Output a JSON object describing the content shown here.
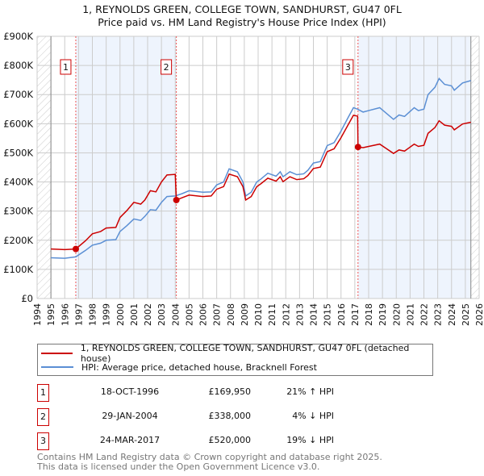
{
  "chart_data": {
    "type": "line",
    "title": "1, REYNOLDS GREEN, COLLEGE TOWN, SANDHURST, GU47 0FL",
    "subtitle": "Price paid vs. HM Land Registry's House Price Index (HPI)",
    "xlim": [
      1994,
      2026
    ],
    "ylim": [
      0,
      900000
    ],
    "x_ticks": [
      "1994",
      "1995",
      "1996",
      "1997",
      "1998",
      "1999",
      "2000",
      "2001",
      "2002",
      "2003",
      "2004",
      "2005",
      "2006",
      "2007",
      "2008",
      "2009",
      "2010",
      "2011",
      "2012",
      "2013",
      "2014",
      "2015",
      "2016",
      "2017",
      "2018",
      "2019",
      "2020",
      "2021",
      "2022",
      "2023",
      "2024",
      "2025",
      "2026"
    ],
    "y_ticks": [
      {
        "v": 0,
        "label": "£0"
      },
      {
        "v": 100000,
        "label": "£100K"
      },
      {
        "v": 200000,
        "label": "£200K"
      },
      {
        "v": 300000,
        "label": "£300K"
      },
      {
        "v": 400000,
        "label": "£400K"
      },
      {
        "v": 500000,
        "label": "£500K"
      },
      {
        "v": 600000,
        "label": "£600K"
      },
      {
        "v": 700000,
        "label": "£700K"
      },
      {
        "v": 800000,
        "label": "£800K"
      },
      {
        "v": 900000,
        "label": "£900K"
      }
    ],
    "grid": true,
    "series": [
      {
        "name": "1, REYNOLDS GREEN, COLLEGE TOWN, SANDHURST, GU47 0FL (detached house)",
        "color": "#cc0000",
        "x": [
          1995,
          1996,
          1996.8,
          1997.5,
          1998,
          1998.6,
          1999,
          1999.7,
          2000,
          2000.5,
          2001,
          2001.5,
          2001.8,
          2002.2,
          2002.6,
          2003,
          2003.4,
          2004.0,
          2004.08,
          2004.5,
          2005,
          2006,
          2006.6,
          2007,
          2007.5,
          2007.9,
          2008.5,
          2008.9,
          2009.1,
          2009.5,
          2009.9,
          2010.2,
          2010.7,
          2011.3,
          2011.6,
          2011.8,
          2012.3,
          2012.8,
          2013.3,
          2013.6,
          2014,
          2014.5,
          2015,
          2015.5,
          2016,
          2016.5,
          2016.9,
          2017.2,
          2017.23,
          2017.6,
          2018,
          2018.8,
          2019.3,
          2019.8,
          2020.2,
          2020.6,
          2021.3,
          2021.6,
          2022,
          2022.3,
          2022.8,
          2023.1,
          2023.5,
          2024,
          2024.2,
          2024.8,
          2025.4
        ],
        "y": [
          170,
          168,
          170,
          198,
          222,
          230,
          242,
          244,
          278,
          302,
          330,
          324,
          338,
          370,
          366,
          400,
          424,
          426,
          338,
          346,
          355,
          350,
          352,
          375,
          384,
          427,
          418,
          384,
          338,
          350,
          384,
          394,
          413,
          403,
          418,
          401,
          418,
          408,
          411,
          422,
          446,
          451,
          504,
          514,
          552,
          595,
          629,
          626,
          520,
          518,
          522,
          530,
          514,
          498,
          510,
          506,
          530,
          522,
          526,
          567,
          587,
          610,
          595,
          591,
          579,
          599,
          605
        ]
      },
      {
        "name": "HPI: Average price, detached house, Bracknell Forest",
        "color": "#5b8fd4",
        "x": [
          1995,
          1996,
          1996.8,
          1997.5,
          1998,
          1998.6,
          1999,
          1999.7,
          2000,
          2000.5,
          2001,
          2001.5,
          2001.8,
          2002.2,
          2002.6,
          2003,
          2003.4,
          2004,
          2004.5,
          2005,
          2006,
          2006.6,
          2007,
          2007.5,
          2007.9,
          2008.5,
          2008.9,
          2009.1,
          2009.5,
          2009.9,
          2010.2,
          2010.7,
          2011.3,
          2011.6,
          2011.8,
          2012.3,
          2012.8,
          2013.3,
          2013.6,
          2014,
          2014.5,
          2015,
          2015.5,
          2016,
          2016.5,
          2016.9,
          2017.2,
          2017.6,
          2018,
          2018.8,
          2019.3,
          2019.8,
          2020.2,
          2020.6,
          2021.3,
          2021.6,
          2022,
          2022.3,
          2022.8,
          2023.1,
          2023.5,
          2024,
          2024.2,
          2024.8,
          2025.4
        ],
        "y": [
          140,
          138,
          143,
          165,
          183,
          190,
          200,
          202,
          230,
          250,
          273,
          268,
          282,
          305,
          303,
          330,
          350,
          352,
          360,
          370,
          365,
          366,
          390,
          400,
          445,
          435,
          400,
          352,
          365,
          400,
          410,
          430,
          420,
          435,
          418,
          435,
          425,
          428,
          440,
          465,
          470,
          525,
          535,
          575,
          620,
          655,
          650,
          640,
          645,
          655,
          635,
          615,
          630,
          625,
          655,
          645,
          650,
          700,
          725,
          755,
          735,
          730,
          715,
          740,
          748
        ]
      }
    ],
    "sales": [
      {
        "n": "1",
        "x": 1996.8,
        "y": 169950
      },
      {
        "n": "2",
        "x": 2004.08,
        "y": 338000
      },
      {
        "n": "3",
        "x": 2017.23,
        "y": 520000
      }
    ],
    "legend": "below"
  },
  "legend": {
    "property": "1, REYNOLDS GREEN, COLLEGE TOWN, SANDHURST, GU47 0FL (detached house)",
    "hpi": "HPI: Average price, detached house, Bracknell Forest"
  },
  "transactions": [
    {
      "n": "1",
      "date": "18-OCT-1996",
      "price": "£169,950",
      "hpi": "21% ↑ HPI"
    },
    {
      "n": "2",
      "date": "29-JAN-2004",
      "price": "£338,000",
      "hpi": "4% ↓ HPI"
    },
    {
      "n": "3",
      "date": "24-MAR-2017",
      "price": "£520,000",
      "hpi": "19% ↓ HPI"
    }
  ],
  "footer": {
    "line1": "Contains HM Land Registry data © Crown copyright and database right 2025.",
    "line2": "This data is licensed under the Open Government Licence v3.0."
  }
}
